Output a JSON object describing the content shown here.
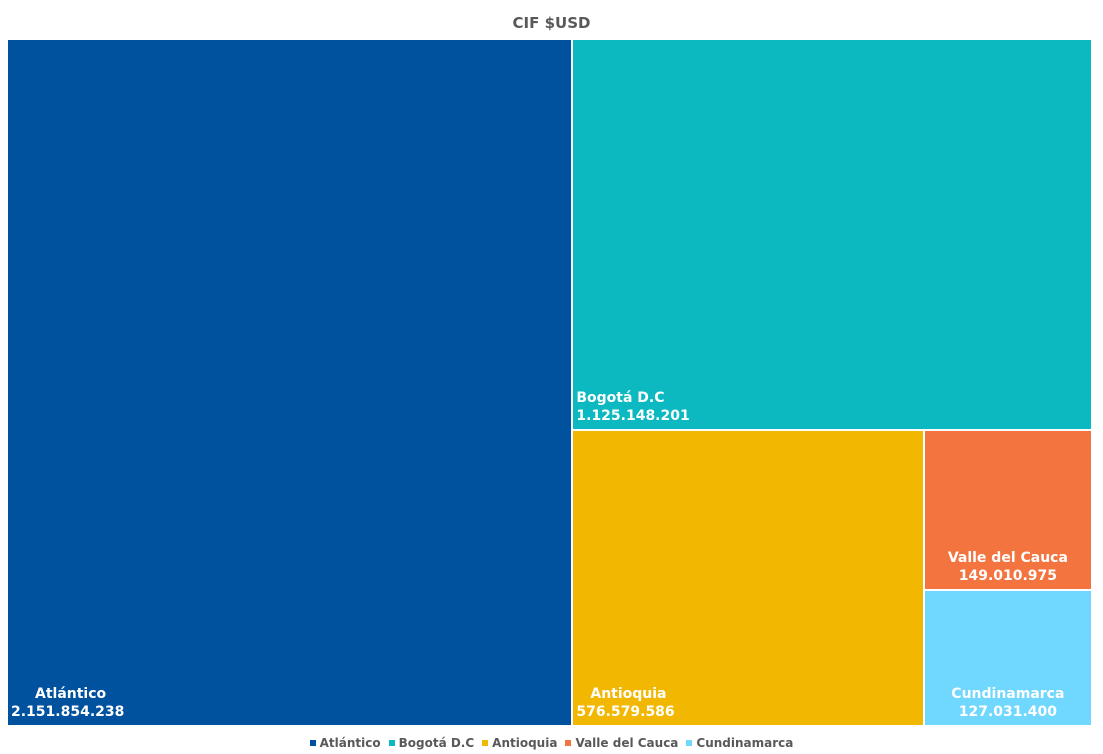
{
  "chart_data": {
    "type": "treemap",
    "title": "CIF $USD",
    "unit": "USD",
    "categories": [
      "Atlántico",
      "Bogotá D.C",
      "Antioquia",
      "Valle del Cauca",
      "Cundinamarca"
    ],
    "values": [
      2151854238,
      1125148201,
      576579586,
      149010975,
      127031400
    ],
    "value_labels": [
      "2.151.854.238",
      "1.125.148.201",
      "576.579.586",
      "149.010.975",
      "127.031.400"
    ],
    "colors": [
      "#00519E",
      "#0CB9C1",
      "#F2B701",
      "#F47440",
      "#70D7FF"
    ],
    "legend_position": "bottom",
    "grid": false
  }
}
